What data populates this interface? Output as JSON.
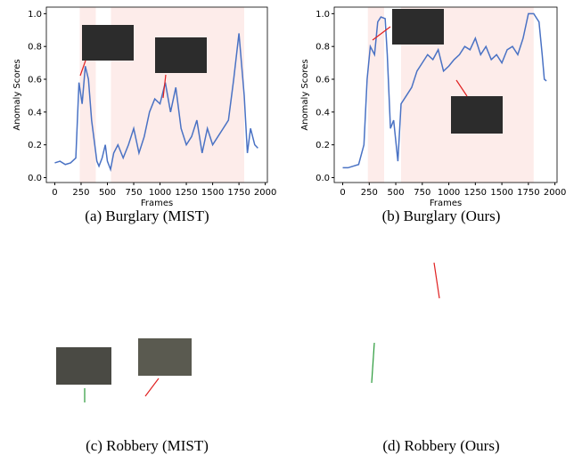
{
  "chart_data": [
    {
      "type": "line",
      "caption": "(a) Burglary (MIST)",
      "xlabel": "Frames",
      "ylabel": "Anomaly Scores",
      "xlim": [
        -80,
        2020
      ],
      "ylim": [
        -0.03,
        1.04
      ],
      "xticks": [
        0,
        250,
        500,
        750,
        1000,
        1250,
        1500,
        1750,
        2000
      ],
      "yticks": [
        {
          "value": 0,
          "label": "0.0"
        },
        0.2,
        0.4,
        0.6,
        0.8,
        {
          "value": 1,
          "label": "1.0"
        }
      ],
      "highlight_ranges": [
        [
          237,
          390
        ],
        [
          534,
          1800
        ]
      ],
      "series": [
        {
          "color": "#4a72c4",
          "x": [
            0,
            50,
            100,
            150,
            200,
            230,
            260,
            290,
            320,
            350,
            380,
            400,
            420,
            450,
            480,
            500,
            530,
            560,
            600,
            650,
            700,
            750,
            800,
            850,
            900,
            950,
            1000,
            1050,
            1100,
            1150,
            1200,
            1250,
            1300,
            1350,
            1400,
            1450,
            1500,
            1550,
            1600,
            1650,
            1700,
            1750,
            1800,
            1830,
            1860,
            1900,
            1930
          ],
          "values": [
            0.09,
            0.1,
            0.08,
            0.09,
            0.12,
            0.58,
            0.45,
            0.68,
            0.6,
            0.35,
            0.2,
            0.1,
            0.07,
            0.12,
            0.2,
            0.1,
            0.05,
            0.15,
            0.2,
            0.12,
            0.2,
            0.3,
            0.15,
            0.25,
            0.4,
            0.48,
            0.45,
            0.58,
            0.4,
            0.55,
            0.3,
            0.2,
            0.25,
            0.35,
            0.15,
            0.3,
            0.2,
            0.25,
            0.3,
            0.35,
            0.6,
            0.88,
            0.5,
            0.15,
            0.3,
            0.2,
            0.18
          ]
        }
      ]
    },
    {
      "type": "line",
      "caption": "(b) Burglary (Ours)",
      "xlabel": "Frames",
      "ylabel": "Anomaly Scores",
      "xlim": [
        -80,
        2020
      ],
      "ylim": [
        -0.03,
        1.04
      ],
      "xticks": [
        0,
        250,
        500,
        750,
        1000,
        1250,
        1500,
        1750,
        2000
      ],
      "yticks": [
        {
          "value": 0,
          "label": "0.0"
        },
        0.2,
        0.4,
        0.6,
        0.8,
        {
          "value": 1,
          "label": "1.0"
        }
      ],
      "highlight_ranges": [
        [
          237,
          390
        ],
        [
          550,
          1800
        ]
      ],
      "series": [
        {
          "color": "#4a72c4",
          "x": [
            0,
            50,
            100,
            150,
            200,
            230,
            260,
            300,
            330,
            360,
            400,
            420,
            450,
            480,
            520,
            550,
            600,
            650,
            700,
            750,
            800,
            850,
            900,
            950,
            1000,
            1050,
            1100,
            1150,
            1200,
            1250,
            1300,
            1350,
            1400,
            1450,
            1500,
            1550,
            1600,
            1650,
            1700,
            1750,
            1800,
            1850,
            1880,
            1900,
            1920
          ],
          "values": [
            0.06,
            0.06,
            0.07,
            0.08,
            0.2,
            0.6,
            0.8,
            0.75,
            0.95,
            0.98,
            0.97,
            0.75,
            0.3,
            0.35,
            0.1,
            0.45,
            0.5,
            0.55,
            0.65,
            0.7,
            0.75,
            0.72,
            0.78,
            0.65,
            0.68,
            0.72,
            0.75,
            0.8,
            0.78,
            0.85,
            0.75,
            0.8,
            0.72,
            0.75,
            0.7,
            0.78,
            0.8,
            0.75,
            0.85,
            1.0,
            1.0,
            0.95,
            0.75,
            0.6,
            0.59
          ]
        }
      ]
    }
  ],
  "other_panels": [
    {
      "caption": "(c) Robbery (MIST)"
    },
    {
      "caption": "(d) Robbery (Ours)"
    }
  ]
}
